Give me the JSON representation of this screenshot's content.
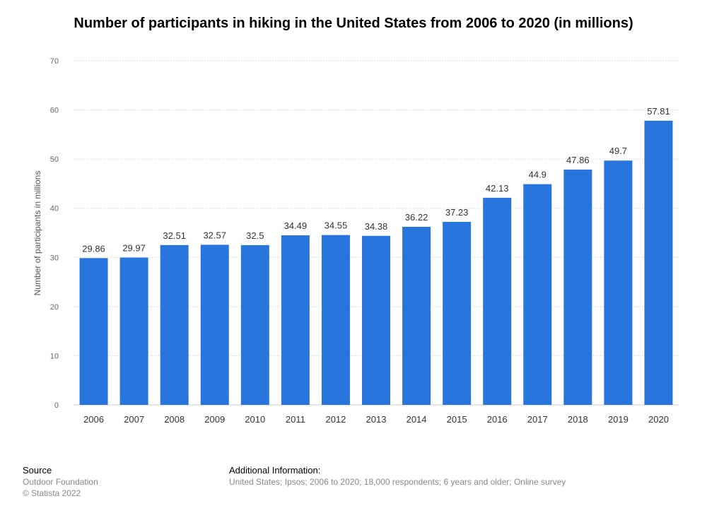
{
  "chart_data": {
    "type": "bar",
    "title": "Number of participants in hiking in the United States from 2006 to 2020 (in millions)",
    "xlabel": "",
    "ylabel": "Number of participants in millions",
    "categories": [
      "2006",
      "2007",
      "2008",
      "2009",
      "2010",
      "2011",
      "2012",
      "2013",
      "2014",
      "2015",
      "2016",
      "2017",
      "2018",
      "2019",
      "2020"
    ],
    "values": [
      29.86,
      29.97,
      32.51,
      32.57,
      32.5,
      34.49,
      34.55,
      34.38,
      36.22,
      37.23,
      42.13,
      44.9,
      47.86,
      49.7,
      57.81
    ],
    "value_labels": [
      "29.86",
      "29.97",
      "32.51",
      "32.57",
      "32.5",
      "34.49",
      "34.55",
      "34.38",
      "36.22",
      "37.23",
      "42.13",
      "44.9",
      "47.86",
      "49.7",
      "57.81"
    ],
    "ylim": [
      0,
      70
    ],
    "yticks": [
      "0",
      "10",
      "20",
      "30",
      "40",
      "50",
      "60",
      "70"
    ],
    "grid": true,
    "bar_color": "#2876dd"
  },
  "footer": {
    "source_heading": "Source",
    "source_line1": "Outdoor Foundation",
    "source_line2": "© Statista 2022",
    "info_heading": "Additional Information:",
    "info_text": "United States; Ipsos; 2006 to 2020; 18,000 respondents; 6 years and older; Online survey"
  }
}
